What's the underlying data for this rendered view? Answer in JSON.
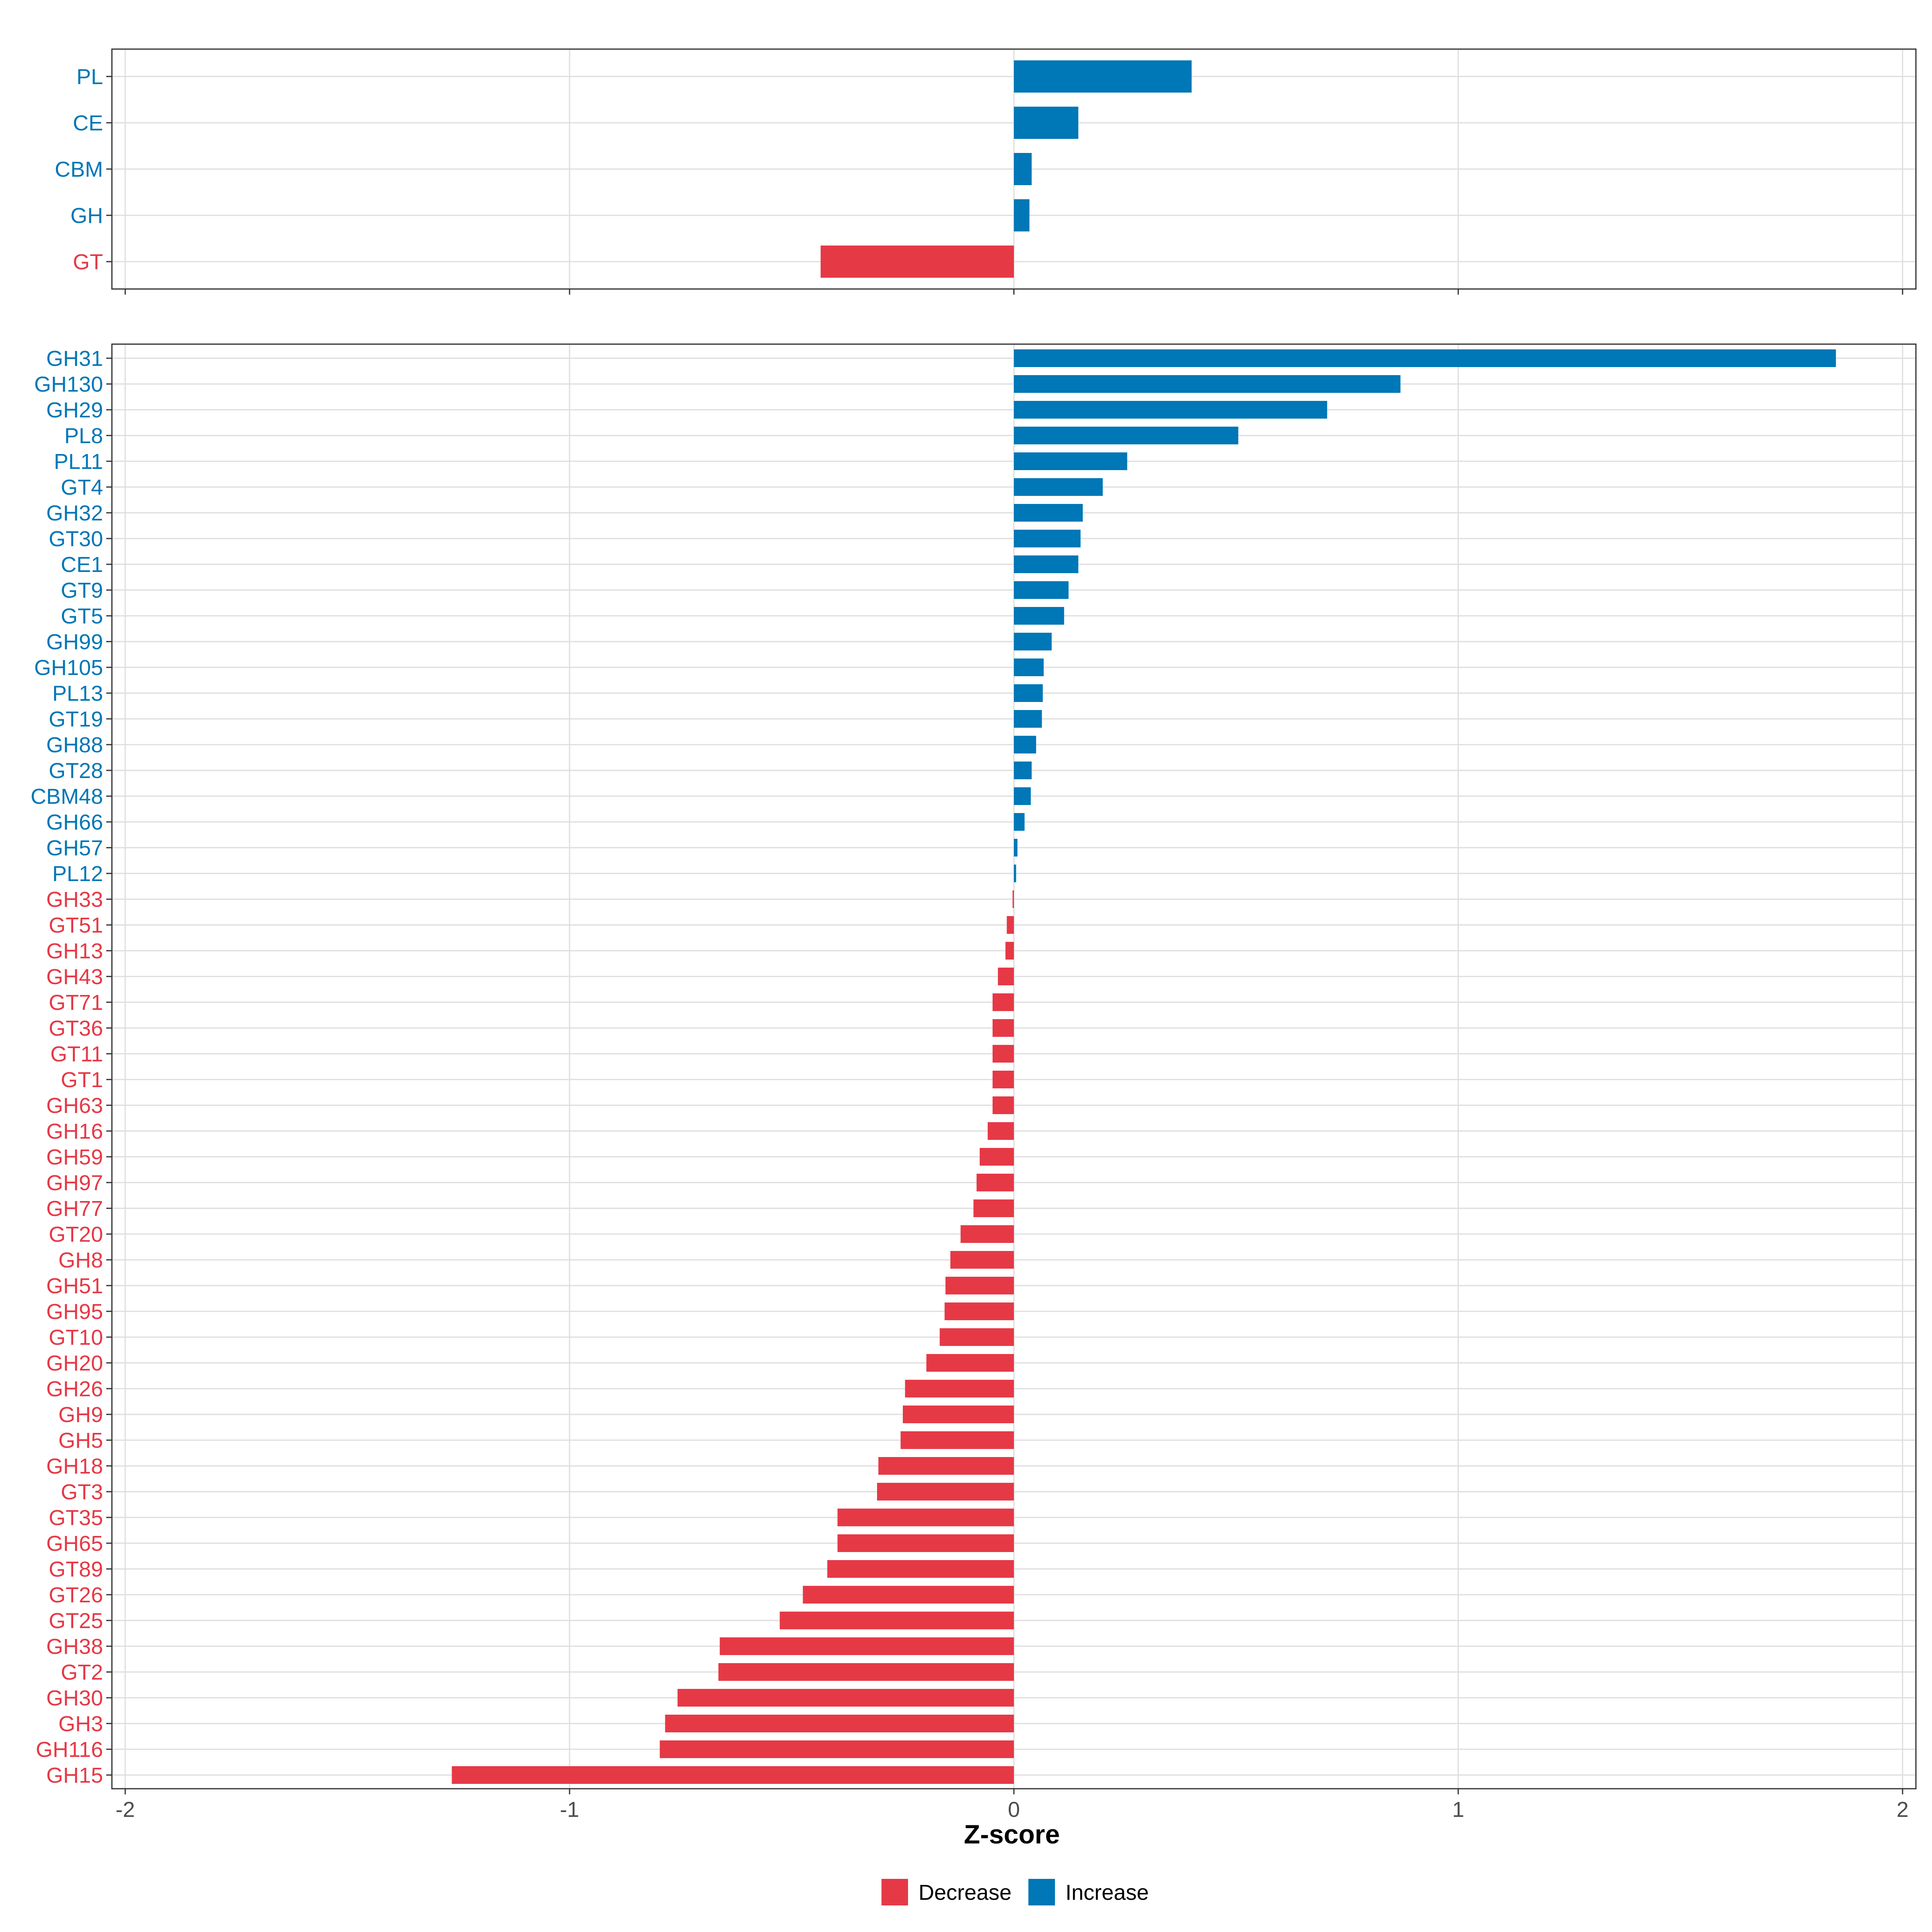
{
  "chart_data": {
    "type": "bar",
    "orientation": "horizontal",
    "xlabel": "Z-score",
    "xlim": [
      -2.03,
      2.03
    ],
    "x_ticks": [
      -2,
      -1,
      0,
      1,
      2
    ],
    "x_tick_labels": [
      "-2",
      "-1",
      "0",
      "1",
      "2"
    ],
    "grid": true,
    "colors": {
      "Decrease": "#E63946",
      "Increase": "#0077B6"
    },
    "legend": {
      "position": "bottom",
      "entries": [
        "Decrease",
        "Increase"
      ]
    },
    "panels": [
      {
        "name": "class",
        "categories": [
          "PL",
          "CE",
          "CBM",
          "GH",
          "GT"
        ],
        "values": [
          0.4,
          0.145,
          0.04,
          0.035,
          -0.435
        ],
        "groups": [
          "Increase",
          "Increase",
          "Increase",
          "Increase",
          "Decrease"
        ]
      },
      {
        "name": "family",
        "categories": [
          "GH31",
          "GH130",
          "GH29",
          "PL8",
          "PL11",
          "GT4",
          "GH32",
          "GT30",
          "CE1",
          "GT9",
          "GT5",
          "GH99",
          "GH105",
          "PL13",
          "GT19",
          "GH88",
          "GT28",
          "CBM48",
          "GH66",
          "GH57",
          "PL12",
          "GH33",
          "GT51",
          "GH13",
          "GH43",
          "GT71",
          "GT36",
          "GT11",
          "GT1",
          "GH63",
          "GH16",
          "GH59",
          "GH97",
          "GH77",
          "GT20",
          "GH8",
          "GH51",
          "GH95",
          "GT10",
          "GH20",
          "GH26",
          "GH9",
          "GH5",
          "GH18",
          "GT3",
          "GT35",
          "GH65",
          "GT89",
          "GT26",
          "GT25",
          "GH38",
          "GT2",
          "GH30",
          "GH3",
          "GH116",
          "GH15"
        ],
        "values": [
          1.85,
          0.87,
          0.705,
          0.505,
          0.255,
          0.2,
          0.155,
          0.15,
          0.145,
          0.123,
          0.113,
          0.085,
          0.067,
          0.065,
          0.063,
          0.05,
          0.04,
          0.038,
          0.024,
          0.008,
          0.005,
          -0.003,
          -0.016,
          -0.019,
          -0.036,
          -0.048,
          -0.048,
          -0.048,
          -0.048,
          -0.048,
          -0.059,
          -0.077,
          -0.084,
          -0.091,
          -0.12,
          -0.143,
          -0.154,
          -0.156,
          -0.167,
          -0.197,
          -0.245,
          -0.25,
          -0.255,
          -0.305,
          -0.308,
          -0.397,
          -0.397,
          -0.42,
          -0.475,
          -0.527,
          -0.662,
          -0.665,
          -0.757,
          -0.785,
          -0.797,
          -1.265
        ],
        "groups": [
          "Increase",
          "Increase",
          "Increase",
          "Increase",
          "Increase",
          "Increase",
          "Increase",
          "Increase",
          "Increase",
          "Increase",
          "Increase",
          "Increase",
          "Increase",
          "Increase",
          "Increase",
          "Increase",
          "Increase",
          "Increase",
          "Increase",
          "Increase",
          "Increase",
          "Decrease",
          "Decrease",
          "Decrease",
          "Decrease",
          "Decrease",
          "Decrease",
          "Decrease",
          "Decrease",
          "Decrease",
          "Decrease",
          "Decrease",
          "Decrease",
          "Decrease",
          "Decrease",
          "Decrease",
          "Decrease",
          "Decrease",
          "Decrease",
          "Decrease",
          "Decrease",
          "Decrease",
          "Decrease",
          "Decrease",
          "Decrease",
          "Decrease",
          "Decrease",
          "Decrease",
          "Decrease",
          "Decrease",
          "Decrease",
          "Decrease",
          "Decrease",
          "Decrease",
          "Decrease",
          "Decrease"
        ]
      }
    ]
  }
}
